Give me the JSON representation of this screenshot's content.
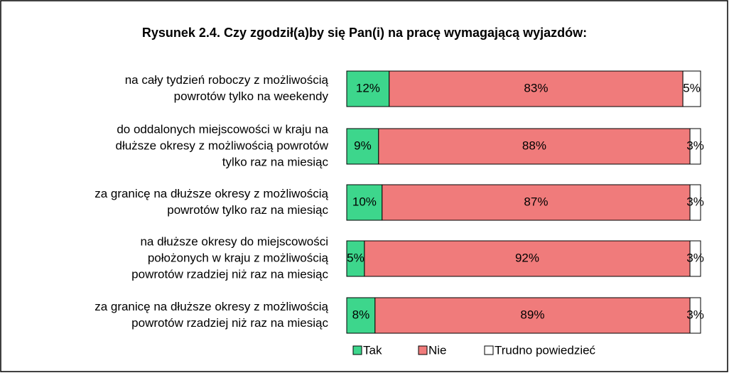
{
  "chart_data": {
    "type": "stacked-bar-horizontal",
    "title": "Rysunek 2.4. Czy zgodził(a)by się Pan(i) na pracę wymagającą wyjazdów:",
    "categories": [
      [
        "na cały tydzień roboczy z możliwością",
        "powrotów tylko na weekendy"
      ],
      [
        "do oddalonych miejscowości w kraju na",
        "dłuższe okresy z możliwością powrotów",
        "tylko raz na miesiąc"
      ],
      [
        "za granicę na dłuższe okresy z możliwością",
        "powrotów tylko raz na miesiąc"
      ],
      [
        "na dłuższe okresy do miejscowości",
        "położonych w kraju z możliwością",
        "powrotów rzadziej niż raz na miesiąc"
      ],
      [
        "za granicę na dłuższe okresy z możliwością",
        "powrotów rzadziej niż raz na miesiąc"
      ]
    ],
    "series": [
      {
        "name": "Tak",
        "color": "#3dd68c",
        "values": [
          12,
          9,
          10,
          5,
          8
        ],
        "value_labels": [
          "12%",
          "9%",
          "10%",
          "5%",
          "8%"
        ]
      },
      {
        "name": "Nie",
        "color": "#f07b7b",
        "values": [
          83,
          88,
          87,
          92,
          89
        ],
        "value_labels": [
          "83%",
          "88%",
          "87%",
          "92%",
          "89%"
        ]
      },
      {
        "name": "Trudno powiedzieć",
        "color": "#ffffff",
        "values": [
          5,
          3,
          3,
          3,
          3
        ],
        "value_labels": [
          "5%",
          "3%",
          "3%",
          "3%",
          "3%"
        ]
      }
    ],
    "xlim": [
      0,
      100
    ],
    "legend": "bottom"
  }
}
